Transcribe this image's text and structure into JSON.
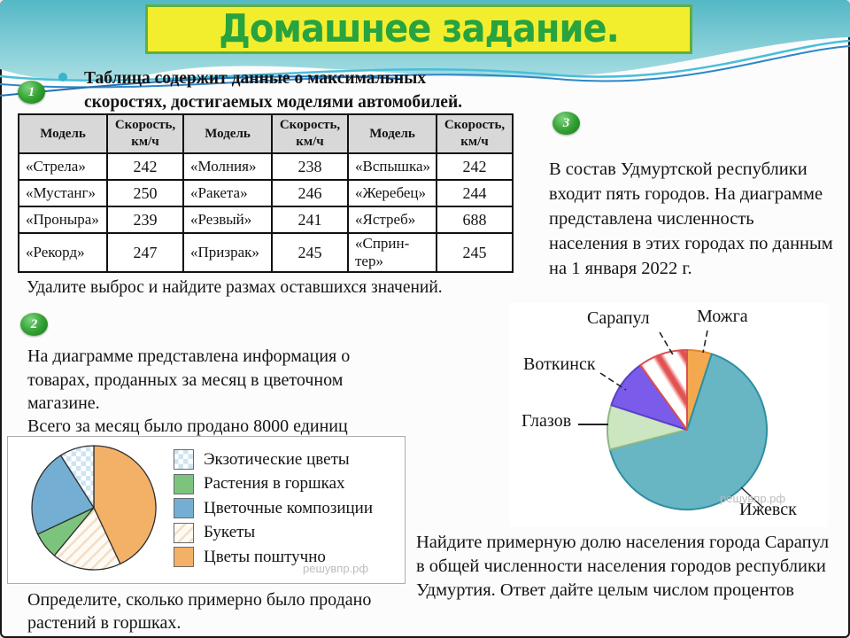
{
  "slide": {
    "title": "Домашнее задание.",
    "watermark": "решувпр.рф"
  },
  "badges": {
    "one": "1",
    "two": "2",
    "three": "3"
  },
  "problem1": {
    "intro": "Таблица содержит данные о максимальных скоростях, достигаемых моделями автомобилей.",
    "question": "Удалите выброс и найдите размах оставшихся значений.",
    "table": {
      "headers": [
        "Модель",
        "Скорость, км/ч",
        "Модель",
        "Скорость, км/ч",
        "Модель",
        "Скорость, км/ч"
      ],
      "rows": [
        [
          "«Стрела»",
          "242",
          "«Молния»",
          "238",
          "«Вспышка»",
          "242"
        ],
        [
          "«Мустанг»",
          "250",
          "«Ракета»",
          "246",
          "«Жеребец»",
          "244"
        ],
        [
          "«Проныра»",
          "239",
          "«Резвый»",
          "241",
          "«Ястреб»",
          "688"
        ],
        [
          "«Рекорд»",
          "247",
          "«Призрак»",
          "245",
          "«Сприн-\nтер»",
          "245"
        ]
      ]
    }
  },
  "problem2": {
    "intro": "На диаграмме представлена информация о товарах, проданных за месяц в цветочном магазине.",
    "total_line": "Всего за месяц было продано 8000 единиц",
    "question": "Определите, сколько примерно было продано растений в горшках."
  },
  "problem3": {
    "intro": "В состав Удмуртской республики входит пять городов. На диаграмме представлена численность населения в этих городах по данным на 1 января 2022 г.",
    "question": "Найдите примерную долю населения города Сарапул в общей численности населения городов республики Удмуртия. Ответ дайте целым числом процентов"
  },
  "chart_data": [
    {
      "type": "pie",
      "context": "Товары, проданные за месяц в цветочном магазине",
      "total_units": 8000,
      "value_unit": "percent, estimated from slice angles",
      "categories": [
        "Цветы поштучно",
        "Букеты",
        "Растения в горшках",
        "Цветочные композиции",
        "Экзотические цветы"
      ],
      "values": [
        43,
        18,
        7,
        23,
        9
      ],
      "slices": [
        {
          "label": "Цветы поштучно",
          "percent": 43,
          "fill": "#F3B168"
        },
        {
          "label": "Букеты",
          "percent": 18,
          "fill": "pattern:hatch"
        },
        {
          "label": "Растения в горшках",
          "percent": 7,
          "fill": "#7CC47E"
        },
        {
          "label": "Цветочные композиции",
          "percent": 23,
          "fill": "#74AFD3"
        },
        {
          "label": "Экзотические цветы",
          "percent": 9,
          "fill": "pattern:checker"
        }
      ],
      "legend": [
        "Экзотические цветы",
        "Растения в горшках",
        "Цветочные композиции",
        "Букеты",
        "Цветы поштучно"
      ],
      "legend_position": "right"
    },
    {
      "type": "pie",
      "context": "Численность населения пяти городов Удмуртской республики на 1 января 2022 г.",
      "value_unit": "percent, estimated from slice angles",
      "categories": [
        "Можга",
        "Ижевск",
        "Глазов",
        "Воткинск",
        "Сарапул"
      ],
      "values": [
        5,
        66,
        9,
        10,
        10
      ],
      "slices": [
        {
          "label": "Можга",
          "percent": 5,
          "fill": "#F5A94F",
          "stroke": "#E0872E"
        },
        {
          "label": "Ижевск",
          "percent": 66,
          "fill": "#68B5C4",
          "stroke": "#2E8FA0"
        },
        {
          "label": "Глазов",
          "percent": 9,
          "fill": "#CBE6C1",
          "stroke": "#8FB886"
        },
        {
          "label": "Воткинск",
          "percent": 10,
          "fill": "#7B5BE9",
          "stroke": "#5B3FC9"
        },
        {
          "label": "Сарапул",
          "percent": 10,
          "fill": "pattern:red-stripes",
          "stroke": "#DC4F4F"
        }
      ],
      "legend_position": "labels-around"
    }
  ]
}
